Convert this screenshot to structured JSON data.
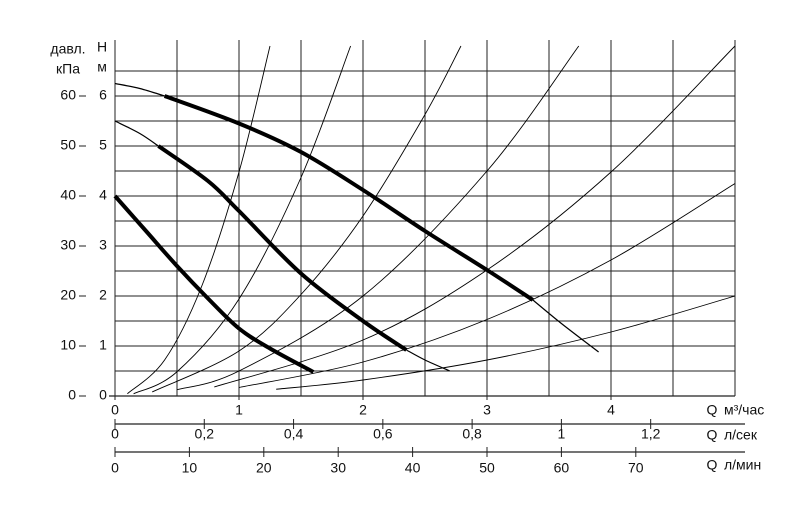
{
  "chart_data": {
    "type": "line",
    "y2_label": [
      "давл.",
      "кПа"
    ],
    "y_label": [
      "H",
      "м"
    ],
    "x_label": [
      "Q",
      "м³/час"
    ],
    "xlim": [
      0,
      5
    ],
    "xticks": [
      0,
      1,
      2,
      3,
      4
    ],
    "xgrid": [
      0,
      0.5,
      1,
      1.5,
      2,
      2.5,
      3,
      3.5,
      4,
      4.5,
      5
    ],
    "ylim": [
      0,
      7
    ],
    "yticks": [
      0,
      1,
      2,
      3,
      4,
      5,
      6
    ],
    "ygrid": [
      0.5,
      1,
      1.5,
      2,
      2.5,
      3,
      3.5,
      4,
      4.5,
      5,
      5.5,
      6,
      6.5
    ],
    "y2lim": [
      0,
      70
    ],
    "y2ticks": [
      0,
      10,
      20,
      30,
      40,
      50,
      60
    ],
    "x2": {
      "label": [
        "Q",
        "л/сек"
      ],
      "lim": [
        0,
        1.3889
      ],
      "ticks": [
        0,
        {
          "value": 0.2,
          "label": "0,2"
        },
        {
          "value": 0.4,
          "label": "0,4"
        },
        {
          "value": 0.6,
          "label": "0,6"
        },
        {
          "value": 0.8,
          "label": "0,8"
        },
        1,
        {
          "value": 1.2,
          "label": "1,2"
        }
      ]
    },
    "x3": {
      "label": [
        "Q",
        "л/мин"
      ],
      "lim": [
        0,
        83.333
      ],
      "ticks": [
        0,
        10,
        20,
        30,
        40,
        50,
        60,
        70
      ]
    },
    "color": "#000000",
    "series": [
      {
        "width": 4,
        "x": [
          0,
          0.25,
          0.5,
          0.75,
          1,
          1.25,
          1.6
        ],
        "values": [
          4.0,
          3.3,
          2.6,
          1.95,
          1.35,
          0.95,
          0.48
        ]
      },
      {
        "width": 1.2,
        "x": [
          0,
          0.2,
          0.35
        ],
        "values": [
          5.5,
          5.25,
          5.0
        ]
      },
      {
        "width": 4,
        "x": [
          0.35,
          0.75,
          1,
          1.5,
          2,
          2.35
        ],
        "values": [
          5.0,
          4.3,
          3.7,
          2.45,
          1.5,
          0.92
        ]
      },
      {
        "width": 1.2,
        "x": [
          2.35,
          2.5,
          2.7
        ],
        "values": [
          0.92,
          0.72,
          0.5
        ]
      },
      {
        "width": 1.2,
        "x": [
          0,
          0.2,
          0.4
        ],
        "values": [
          6.25,
          6.15,
          6.0
        ]
      },
      {
        "width": 4,
        "x": [
          0.4,
          1,
          1.5,
          2,
          2.5,
          3,
          3.37
        ],
        "values": [
          6.0,
          5.45,
          4.88,
          4.12,
          3.3,
          2.52,
          1.92
        ]
      },
      {
        "width": 1.2,
        "x": [
          3.37,
          3.6,
          3.9
        ],
        "values": [
          1.92,
          1.45,
          0.88
        ]
      },
      {
        "width": 0.9,
        "x": [
          0.1,
          0.4,
          0.7,
          1.0,
          1.25
        ],
        "values": [
          0.045,
          0.72,
          2.2,
          4.48,
          7.0
        ]
      },
      {
        "width": 0.9,
        "x": [
          0.15,
          0.5,
          1.0,
          1.5,
          1.9
        ],
        "values": [
          0.044,
          0.485,
          1.94,
          4.37,
          7.0
        ]
      },
      {
        "width": 0.9,
        "x": [
          0.3,
          1,
          1.5,
          2,
          2.5,
          2.79
        ],
        "values": [
          0.081,
          0.9,
          2.03,
          3.6,
          5.63,
          7.0
        ]
      },
      {
        "width": 0.9,
        "x": [
          0.5,
          1,
          2,
          3,
          3.74
        ],
        "values": [
          0.125,
          0.5,
          2.0,
          4.5,
          7.0
        ]
      },
      {
        "width": 0.9,
        "x": [
          0.8,
          2,
          3,
          4,
          5
        ],
        "values": [
          0.18,
          1.12,
          2.52,
          4.48,
          7.0
        ]
      },
      {
        "width": 0.9,
        "x": [
          1.0,
          2,
          3,
          4,
          5
        ],
        "values": [
          0.17,
          0.68,
          1.53,
          2.72,
          4.25
        ]
      },
      {
        "width": 0.9,
        "x": [
          1.3,
          2,
          3,
          4,
          5
        ],
        "values": [
          0.135,
          0.32,
          0.72,
          1.28,
          2.0
        ]
      }
    ]
  }
}
